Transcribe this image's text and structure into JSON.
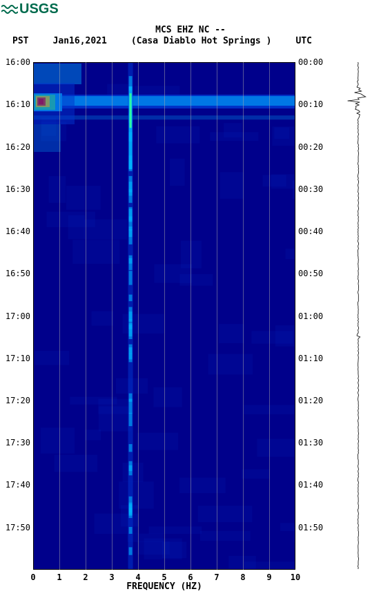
{
  "logo": {
    "text": "USGS",
    "color": "#006b4d"
  },
  "title_line1": "MCS EHZ NC --",
  "left_tz": "PST",
  "date": "Jan16,2021",
  "station_name": "(Casa Diablo Hot Springs )",
  "right_tz": "UTC",
  "spectrogram": {
    "type": "spectrogram",
    "xlabel": "FREQUENCY (HZ)",
    "xlim": [
      0,
      10
    ],
    "xticks": [
      0,
      1,
      2,
      3,
      4,
      5,
      6,
      7,
      8,
      9,
      10
    ],
    "xtick_labels": [
      "0",
      "1",
      "2",
      "3",
      "4",
      "5",
      "6",
      "7",
      "8",
      "9",
      "10"
    ],
    "left_time_labels": [
      "16:00",
      "16:10",
      "16:20",
      "16:30",
      "16:40",
      "16:50",
      "17:00",
      "17:10",
      "17:20",
      "17:30",
      "17:40",
      "17:50"
    ],
    "left_time_positions_pct": [
      0,
      8.33,
      16.67,
      25.0,
      33.33,
      41.67,
      50.0,
      58.33,
      66.67,
      75.0,
      83.33,
      91.67
    ],
    "right_time_labels": [
      "00:00",
      "00:10",
      "00:20",
      "00:30",
      "00:40",
      "00:50",
      "01:00",
      "01:10",
      "01:20",
      "01:30",
      "01:40",
      "01:50"
    ],
    "right_time_positions_pct": [
      0,
      8.33,
      16.67,
      25.0,
      33.33,
      41.67,
      50.0,
      58.33,
      66.67,
      75.0,
      83.33,
      91.67
    ],
    "colormap": {
      "low": "#00008b",
      "midlow": "#0033cc",
      "mid": "#00b4ff",
      "midhigh": "#33ff99",
      "high": "#ffff00",
      "peak": "#ff4400",
      "hottest": "#ff0000"
    },
    "background_color": "#00008b",
    "gridline_color": "#aaaaaa",
    "gridline_opacity": 0.5,
    "label_color": "#000000",
    "label_fontsize": 12,
    "axis_label_fontsize": 13,
    "vertical_band_hz": 3.7,
    "event_row_pct": 7.5,
    "secondary_event_row_pct": 10.5
  },
  "waveform": {
    "color": "#000000",
    "baseline_amplitude": 0.5,
    "event_position_pct": 7.5,
    "event_amplitude": 20,
    "tick_position_pct": 54
  }
}
